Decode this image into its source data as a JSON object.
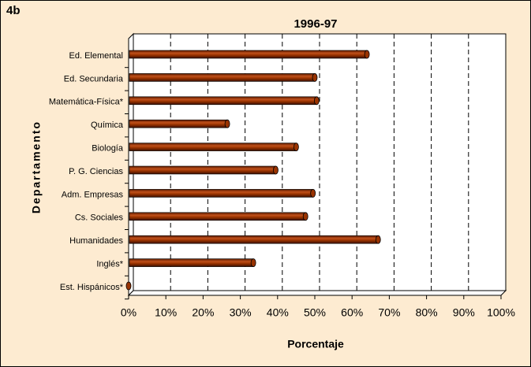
{
  "chart_data": {
    "type": "bar",
    "orientation": "horizontal",
    "label": "4b",
    "title": "1996-97",
    "x_label": "Porcentaje",
    "y_label": "Departamento",
    "categories": [
      "Ed. Elemental",
      "Ed. Secundaria",
      "Matemática-Física*",
      "Química",
      "Biología",
      "P. G. Ciencias",
      "Adm. Empresas",
      "Cs. Sociales",
      "Humanidades",
      "Inglés*",
      "Est. Hispánicos*"
    ],
    "values": [
      64,
      50,
      50.5,
      26.5,
      45,
      39.5,
      49.5,
      47.5,
      67,
      33.5,
      0
    ],
    "color": "#993300",
    "xlim": [
      0,
      100
    ],
    "xticks": [
      {
        "value": 0,
        "label": "0%"
      },
      {
        "value": 10,
        "label": "10%"
      },
      {
        "value": 20,
        "label": "20%"
      },
      {
        "value": 30,
        "label": "30%"
      },
      {
        "value": 40,
        "label": "40%"
      },
      {
        "value": 50,
        "label": "50%"
      },
      {
        "value": 60,
        "label": "60%"
      },
      {
        "value": 70,
        "label": "70%"
      },
      {
        "value": 80,
        "label": "80%"
      },
      {
        "value": 90,
        "label": "90%"
      },
      {
        "value": 100,
        "label": "100%"
      }
    ],
    "grid": true
  }
}
